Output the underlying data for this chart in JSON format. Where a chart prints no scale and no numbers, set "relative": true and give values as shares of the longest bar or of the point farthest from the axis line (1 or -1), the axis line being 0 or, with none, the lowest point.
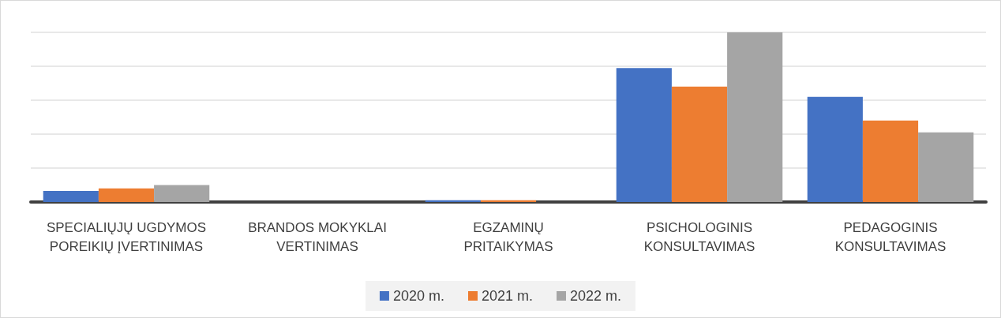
{
  "chart_data": {
    "type": "bar",
    "relative": true,
    "grid": "y",
    "legend": "bottom",
    "categories": [
      "SPECIALIŲJŲ UGDYMOS POREIKIŲ ĮVERTINIMAS",
      "BRANDOS MOKYKLAI VERTINIMAS",
      "EGZAMINŲ PRITAIKYMAS",
      "PSICHOLOGINIS KONSULTAVIMAS",
      "PEDAGOGINIS KONSULTAVIMAS"
    ],
    "series": [
      {
        "name": "2020 m.",
        "color": "#4472c4",
        "values": [
          0.065,
          0,
          0.01,
          0.79,
          0.62
        ]
      },
      {
        "name": "2021 m.",
        "color": "#ed7d31",
        "values": [
          0.08,
          0,
          0.01,
          0.68,
          0.48
        ]
      },
      {
        "name": "2022 m.",
        "color": "#a5a5a5",
        "values": [
          0.1,
          0,
          0,
          1,
          0.41
        ]
      }
    ]
  }
}
